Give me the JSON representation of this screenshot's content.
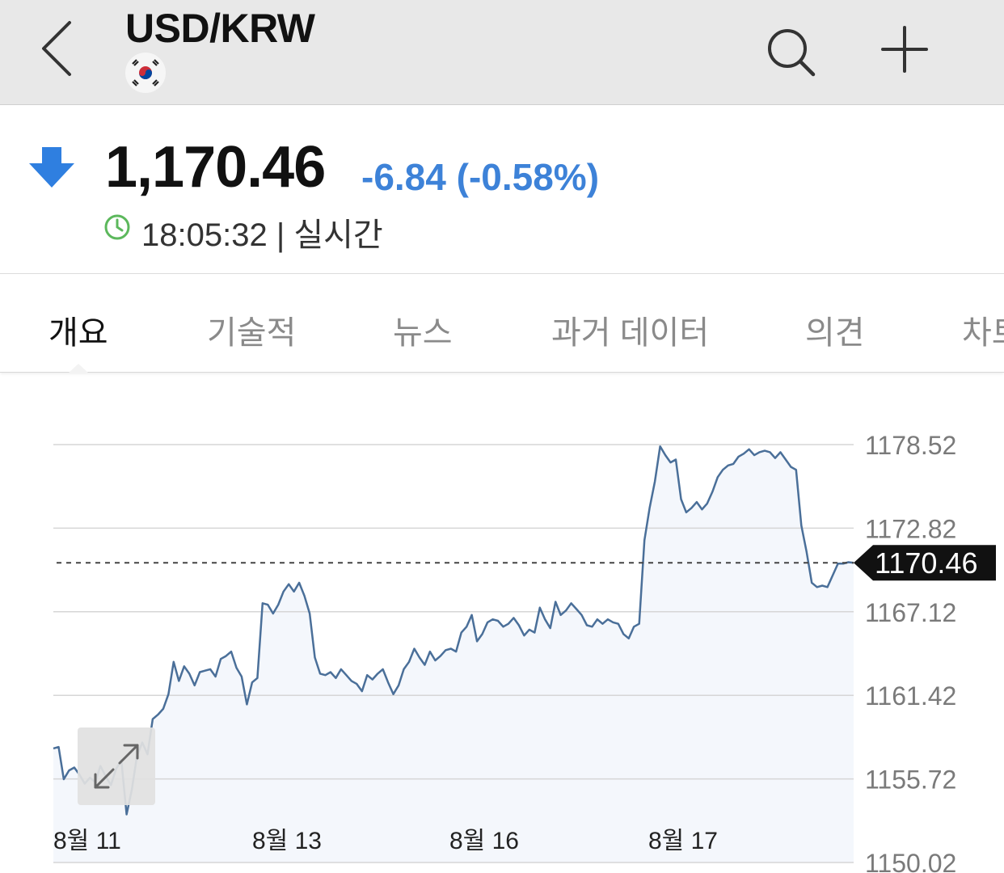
{
  "header": {
    "pair": "USD/KRW",
    "back_icon": "chevron-left-icon",
    "flag_icon": "south-korea-flag-icon",
    "search_icon": "search-icon",
    "add_icon": "plus-icon"
  },
  "quote": {
    "direction_icon": "down-arrow-icon",
    "price": "1,170.46",
    "change": "-6.84 (-0.58%)",
    "time": "18:05:32 | 실시간",
    "clock_icon": "clock-icon",
    "change_color": "#3d82d8",
    "arrow_color": "#2f7fe0"
  },
  "tabs": [
    {
      "label": "개요",
      "active": true
    },
    {
      "label": "기술적",
      "active": false
    },
    {
      "label": "뉴스",
      "active": false
    },
    {
      "label": "과거 데이터",
      "active": false
    },
    {
      "label": "의견",
      "active": false
    },
    {
      "label": "차트",
      "active": false
    }
  ],
  "chart_data": {
    "type": "area",
    "x_tick_labels": [
      "8월 11",
      "8월 13",
      "8월 16",
      "8월 17"
    ],
    "y_tick_labels": [
      "1178.52",
      "1172.82",
      "1167.12",
      "1161.42",
      "1155.72",
      "1150.02"
    ],
    "ylim": [
      1150.02,
      1178.52
    ],
    "current_value": 1170.46,
    "current_label": "1170.46",
    "line_color": "#4a6f99",
    "fill_color": "#f4f7fc",
    "grid": true,
    "series": [
      {
        "values": [
          1157.8,
          1157.9,
          1155.7,
          1156.3,
          1156.5,
          1156.0,
          1155.4,
          1155.8,
          1155.5,
          1156.6,
          1155.9,
          1155.3,
          1156.4,
          1157.0,
          1153.3,
          1155.0,
          1157.3,
          1158.2,
          1157.4,
          1159.8,
          1160.1,
          1160.5,
          1161.5,
          1163.7,
          1162.4,
          1163.4,
          1162.9,
          1162.1,
          1163.0,
          1163.1,
          1163.2,
          1162.7,
          1163.9,
          1164.1,
          1164.4,
          1163.3,
          1162.7,
          1160.8,
          1162.3,
          1162.6,
          1167.7,
          1167.6,
          1167.0,
          1167.6,
          1168.5,
          1169.0,
          1168.5,
          1169.1,
          1168.2,
          1167.0,
          1164.0,
          1162.9,
          1162.8,
          1163.0,
          1162.6,
          1163.2,
          1162.8,
          1162.4,
          1162.2,
          1161.7,
          1162.8,
          1162.5,
          1162.9,
          1163.2,
          1162.3,
          1161.5,
          1162.1,
          1163.2,
          1163.7,
          1164.6,
          1164.0,
          1163.5,
          1164.4,
          1163.8,
          1164.1,
          1164.5,
          1164.6,
          1164.4,
          1165.7,
          1166.1,
          1166.9,
          1165.1,
          1165.6,
          1166.4,
          1166.6,
          1166.5,
          1166.1,
          1166.3,
          1166.7,
          1166.2,
          1165.5,
          1165.9,
          1165.7,
          1167.4,
          1166.6,
          1166.0,
          1167.8,
          1166.9,
          1167.2,
          1167.7,
          1167.3,
          1166.9,
          1166.2,
          1166.1,
          1166.6,
          1166.3,
          1166.6,
          1166.4,
          1166.3,
          1165.6,
          1165.3,
          1166.1,
          1166.3,
          1172.0,
          1174.2,
          1176.0,
          1178.4,
          1177.8,
          1177.3,
          1177.5,
          1174.8,
          1173.9,
          1174.2,
          1174.6,
          1174.1,
          1174.5,
          1175.3,
          1176.3,
          1176.8,
          1177.1,
          1177.2,
          1177.7,
          1177.9,
          1178.2,
          1177.8,
          1178.0,
          1178.1,
          1178.0,
          1177.6,
          1178.0,
          1177.5,
          1177.0,
          1176.8,
          1173.0,
          1171.2,
          1169.1,
          1168.8,
          1168.9,
          1168.8,
          1169.6,
          1170.4,
          1170.4,
          1170.5,
          1170.46
        ]
      }
    ]
  },
  "chart_controls": {
    "expand_icon": "expand-arrows-icon"
  }
}
